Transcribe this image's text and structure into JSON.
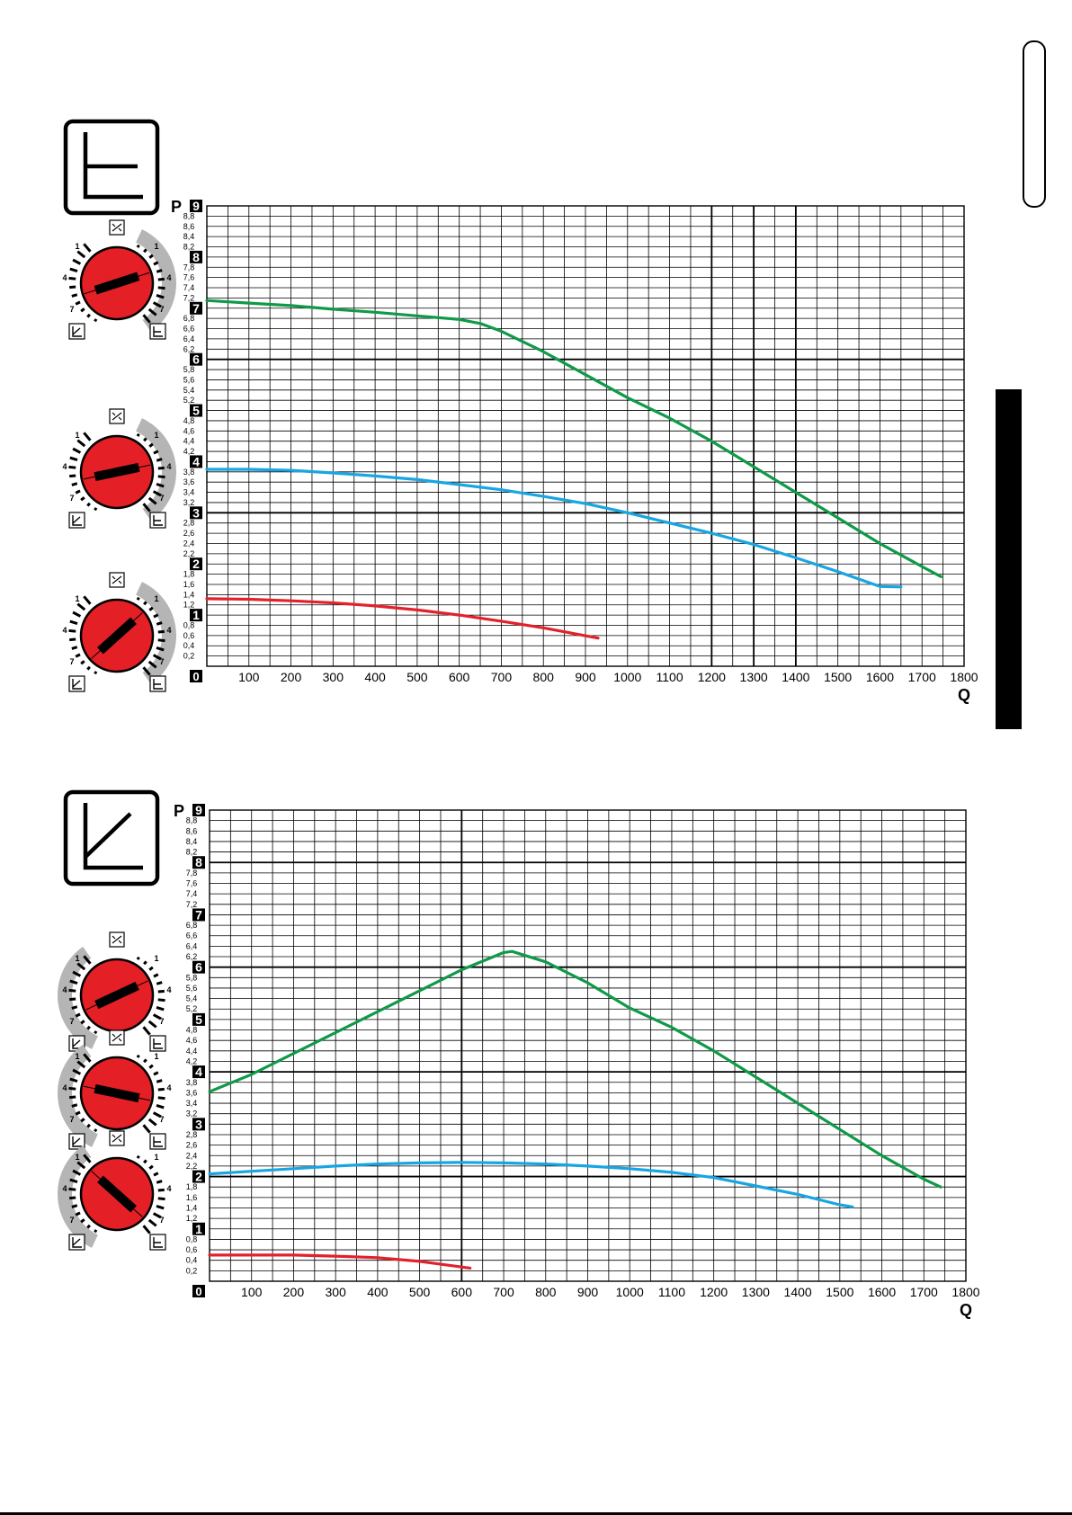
{
  "page": {
    "tab_outline": true,
    "tab_black": true
  },
  "colors": {
    "green": "#0f9a48",
    "blue": "#17a6e2",
    "red": "#e3212b",
    "knob_red": "#e41f26",
    "grey_band": "#b5b5b5",
    "grid": "#000000"
  },
  "icons": [
    "flat-curve-mode-icon",
    "proportional-curve-mode-icon",
    "air-vent-icon"
  ],
  "chart_data": [
    {
      "type": "line",
      "mode_icon": "flat-curve-mode-icon",
      "xlabel": "Q",
      "ylabel": "P",
      "xlim": [
        0,
        1800
      ],
      "ylim": [
        0,
        9
      ],
      "x_ticks": [
        100,
        200,
        300,
        400,
        500,
        600,
        700,
        800,
        900,
        1000,
        1100,
        1200,
        1300,
        1400,
        1500,
        1600,
        1700,
        1800
      ],
      "x_origin_label": "0",
      "y_major_ticks": [
        "9",
        "8",
        "7",
        "6",
        "5",
        "4",
        "3",
        "2",
        "1"
      ],
      "y_minor_ticks": [
        "8,8",
        "8,6",
        "8,4",
        "8,2",
        "7,8",
        "7,6",
        "7,4",
        "7,2",
        "6,8",
        "6,6",
        "6,4",
        "6,2",
        "5,8",
        "5,6",
        "5,4",
        "5,2",
        "4,8",
        "4,6",
        "4,4",
        "4,2",
        "3,8",
        "3,6",
        "3,4",
        "3,2",
        "2,8",
        "2,6",
        "2,4",
        "2,2",
        "1,8",
        "1,6",
        "1,4",
        "1,2",
        "0,8",
        "0,6",
        "0,4",
        "0,2"
      ],
      "bold_x_gridlines": [
        1200,
        1300,
        1400
      ],
      "bold_y_gridlines": [
        3,
        6
      ],
      "grid": true,
      "series": [
        {
          "color": "green",
          "points": [
            [
              0,
              7.15
            ],
            [
              100,
              7.1
            ],
            [
              200,
              7.05
            ],
            [
              300,
              6.98
            ],
            [
              400,
              6.92
            ],
            [
              500,
              6.85
            ],
            [
              600,
              6.78
            ],
            [
              650,
              6.7
            ],
            [
              700,
              6.55
            ],
            [
              800,
              6.15
            ],
            [
              900,
              5.7
            ],
            [
              1000,
              5.25
            ],
            [
              1100,
              4.85
            ],
            [
              1200,
              4.4
            ],
            [
              1300,
              3.9
            ],
            [
              1400,
              3.4
            ],
            [
              1500,
              2.9
            ],
            [
              1600,
              2.4
            ],
            [
              1700,
              1.95
            ],
            [
              1745,
              1.75
            ]
          ]
        },
        {
          "color": "blue",
          "points": [
            [
              0,
              3.85
            ],
            [
              100,
              3.85
            ],
            [
              200,
              3.83
            ],
            [
              300,
              3.78
            ],
            [
              400,
              3.72
            ],
            [
              500,
              3.65
            ],
            [
              600,
              3.55
            ],
            [
              700,
              3.45
            ],
            [
              800,
              3.32
            ],
            [
              900,
              3.18
            ],
            [
              1000,
              3.0
            ],
            [
              1100,
              2.8
            ],
            [
              1200,
              2.6
            ],
            [
              1300,
              2.38
            ],
            [
              1400,
              2.12
            ],
            [
              1500,
              1.85
            ],
            [
              1600,
              1.56
            ],
            [
              1650,
              1.55
            ]
          ]
        },
        {
          "color": "red",
          "points": [
            [
              0,
              1.32
            ],
            [
              100,
              1.31
            ],
            [
              200,
              1.28
            ],
            [
              300,
              1.24
            ],
            [
              400,
              1.18
            ],
            [
              500,
              1.1
            ],
            [
              600,
              1.0
            ],
            [
              700,
              0.88
            ],
            [
              800,
              0.75
            ],
            [
              930,
              0.55
            ]
          ]
        }
      ],
      "knobs": [
        {
          "series": "green",
          "labels": [
            "1",
            "4",
            "7",
            "1",
            "4",
            "7"
          ],
          "pointer_angle": -18,
          "grey_side": "right"
        },
        {
          "series": "blue",
          "labels": [
            "1",
            "4",
            "7",
            "1",
            "4",
            "7"
          ],
          "pointer_angle": -12,
          "grey_side": "right"
        },
        {
          "series": "red",
          "labels": [
            "1",
            "4",
            "7",
            "1",
            "4",
            "7"
          ],
          "pointer_angle": -42,
          "grey_side": "right"
        }
      ]
    },
    {
      "type": "line",
      "mode_icon": "proportional-curve-mode-icon",
      "xlabel": "Q",
      "ylabel": "P",
      "xlim": [
        0,
        1800
      ],
      "ylim": [
        0,
        9
      ],
      "x_ticks": [
        100,
        200,
        300,
        400,
        500,
        600,
        700,
        800,
        900,
        1000,
        1100,
        1200,
        1300,
        1400,
        1500,
        1600,
        1700,
        1800
      ],
      "x_origin_label": "0",
      "y_major_ticks": [
        "9",
        "8",
        "7",
        "6",
        "5",
        "4",
        "3",
        "2",
        "1"
      ],
      "y_minor_ticks": [
        "8,8",
        "8,6",
        "8,4",
        "8,2",
        "7,8",
        "7,6",
        "7,4",
        "7,2",
        "6,8",
        "6,6",
        "6,4",
        "6,2",
        "5,8",
        "5,6",
        "5,4",
        "5,2",
        "4,8",
        "4,6",
        "4,4",
        "4,2",
        "3,8",
        "3,6",
        "3,4",
        "3,2",
        "2,8",
        "2,6",
        "2,4",
        "2,2",
        "1,8",
        "1,6",
        "1,4",
        "1,2",
        "0,8",
        "0,6",
        "0,4",
        "0,2"
      ],
      "bold_x_gridlines": [
        600
      ],
      "bold_y_gridlines": [
        2,
        4,
        6,
        8
      ],
      "grid": true,
      "series": [
        {
          "color": "green",
          "points": [
            [
              0,
              3.62
            ],
            [
              100,
              3.95
            ],
            [
              200,
              4.35
            ],
            [
              300,
              4.75
            ],
            [
              400,
              5.15
            ],
            [
              500,
              5.55
            ],
            [
              600,
              5.95
            ],
            [
              700,
              6.28
            ],
            [
              720,
              6.3
            ],
            [
              800,
              6.1
            ],
            [
              900,
              5.7
            ],
            [
              1000,
              5.22
            ],
            [
              1100,
              4.85
            ],
            [
              1200,
              4.4
            ],
            [
              1300,
              3.9
            ],
            [
              1400,
              3.4
            ],
            [
              1500,
              2.9
            ],
            [
              1600,
              2.4
            ],
            [
              1700,
              1.95
            ],
            [
              1740,
              1.8
            ]
          ]
        },
        {
          "color": "blue",
          "points": [
            [
              0,
              2.05
            ],
            [
              100,
              2.1
            ],
            [
              200,
              2.15
            ],
            [
              300,
              2.2
            ],
            [
              400,
              2.24
            ],
            [
              500,
              2.26
            ],
            [
              600,
              2.27
            ],
            [
              700,
              2.26
            ],
            [
              800,
              2.24
            ],
            [
              900,
              2.2
            ],
            [
              1000,
              2.15
            ],
            [
              1100,
              2.08
            ],
            [
              1200,
              1.98
            ],
            [
              1300,
              1.82
            ],
            [
              1400,
              1.66
            ],
            [
              1500,
              1.46
            ],
            [
              1530,
              1.42
            ]
          ]
        },
        {
          "color": "red",
          "points": [
            [
              0,
              0.5
            ],
            [
              100,
              0.5
            ],
            [
              200,
              0.5
            ],
            [
              300,
              0.48
            ],
            [
              400,
              0.45
            ],
            [
              500,
              0.38
            ],
            [
              620,
              0.25
            ]
          ]
        }
      ],
      "knobs": [
        {
          "series": "green",
          "labels": [
            "1",
            "4",
            "7",
            "1",
            "4",
            "7"
          ],
          "pointer_angle": -25,
          "grey_side": "left"
        },
        {
          "series": "blue",
          "labels": [
            "1",
            "4",
            "7",
            "1",
            "4",
            "7"
          ],
          "pointer_angle": 12,
          "grey_side": "left"
        },
        {
          "series": "red",
          "labels": [
            "1",
            "4",
            "7",
            "1",
            "4",
            "7"
          ],
          "pointer_angle": 42,
          "grey_side": "left"
        }
      ]
    }
  ]
}
